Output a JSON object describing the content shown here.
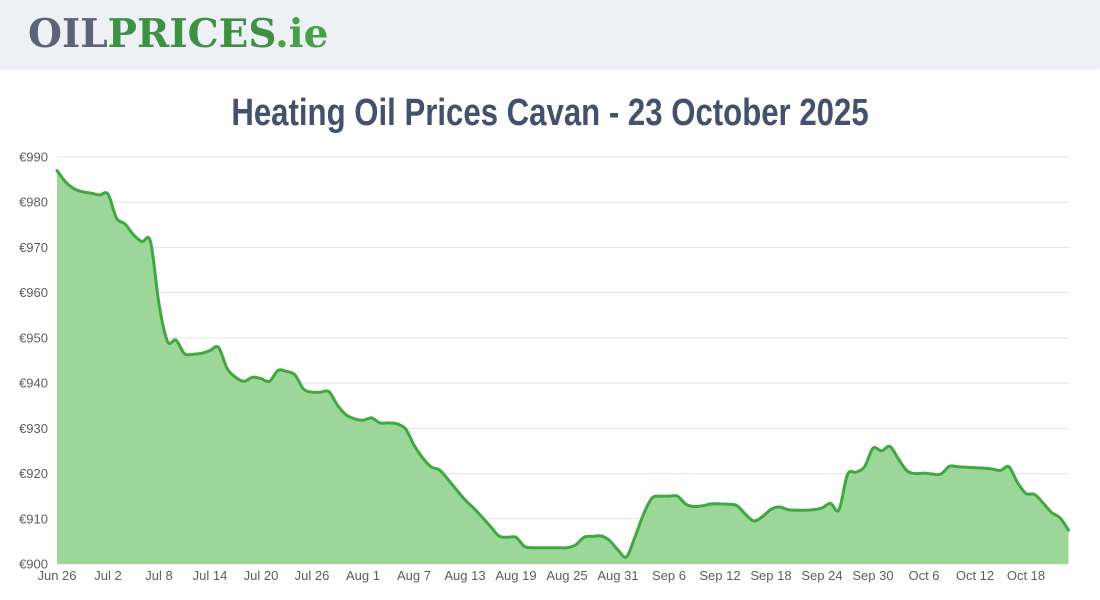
{
  "header": {
    "logo_part1": "OIL",
    "logo_part2": "PRICES",
    "logo_part3": ".ie"
  },
  "page_title": "Heating Oil Prices Cavan - 23 October 2025",
  "colors": {
    "header_bg": "#edf0f4",
    "logo_gray": "#5a6474",
    "logo_green": "#3e9142",
    "title_text": "#44516a",
    "line": "#3fa83e",
    "fill": "#9cd699",
    "grid": "#e3e3e3",
    "axis_text": "#5d5d5d"
  },
  "chart_data": {
    "type": "area",
    "title": "Heating Oil Prices Cavan - 23 October 2025",
    "xlabel": "",
    "ylabel": "",
    "currency": "€",
    "ylim": [
      900,
      990
    ],
    "y_ticks": [
      900,
      910,
      920,
      930,
      940,
      950,
      960,
      970,
      980,
      990
    ],
    "grid": "horizontal",
    "legend_position": "none",
    "x_tick_labels": [
      "Jun 26",
      "Jul 2",
      "Jul 8",
      "Jul 14",
      "Jul 20",
      "Jul 26",
      "Aug 1",
      "Aug 7",
      "Aug 13",
      "Aug 19",
      "Aug 25",
      "Aug 31",
      "Sep 6",
      "Sep 12",
      "Sep 18",
      "Sep 24",
      "Sep 30",
      "Oct 6",
      "Oct 12",
      "Oct 18"
    ],
    "x_tick_day_index": [
      0,
      6,
      12,
      18,
      24,
      30,
      36,
      42,
      48,
      54,
      60,
      66,
      72,
      78,
      84,
      90,
      96,
      102,
      108,
      114
    ],
    "dates": [
      "Jun 26",
      "Jun 27",
      "Jun 28",
      "Jun 29",
      "Jun 30",
      "Jul 1",
      "Jul 2",
      "Jul 3",
      "Jul 4",
      "Jul 5",
      "Jul 6",
      "Jul 7",
      "Jul 8",
      "Jul 9",
      "Jul 10",
      "Jul 11",
      "Jul 12",
      "Jul 13",
      "Jul 14",
      "Jul 15",
      "Jul 16",
      "Jul 17",
      "Jul 18",
      "Jul 19",
      "Jul 20",
      "Jul 21",
      "Jul 22",
      "Jul 23",
      "Jul 24",
      "Jul 25",
      "Jul 26",
      "Jul 27",
      "Jul 28",
      "Jul 29",
      "Jul 30",
      "Jul 31",
      "Aug 1",
      "Aug 2",
      "Aug 3",
      "Aug 4",
      "Aug 5",
      "Aug 6",
      "Aug 7",
      "Aug 8",
      "Aug 9",
      "Aug 10",
      "Aug 11",
      "Aug 12",
      "Aug 13",
      "Aug 14",
      "Aug 15",
      "Aug 16",
      "Aug 17",
      "Aug 18",
      "Aug 19",
      "Aug 20",
      "Aug 21",
      "Aug 22",
      "Aug 23",
      "Aug 24",
      "Aug 25",
      "Aug 26",
      "Aug 27",
      "Aug 28",
      "Aug 29",
      "Aug 30",
      "Aug 31",
      "Sep 1",
      "Sep 2",
      "Sep 3",
      "Sep 4",
      "Sep 5",
      "Sep 6",
      "Sep 7",
      "Sep 8",
      "Sep 9",
      "Sep 10",
      "Sep 11",
      "Sep 12",
      "Sep 13",
      "Sep 14",
      "Sep 15",
      "Sep 16",
      "Sep 17",
      "Sep 18",
      "Sep 19",
      "Sep 20",
      "Sep 21",
      "Sep 22",
      "Sep 23",
      "Sep 24",
      "Sep 25",
      "Sep 26",
      "Sep 27",
      "Sep 28",
      "Sep 29",
      "Sep 30",
      "Oct 1",
      "Oct 2",
      "Oct 3",
      "Oct 4",
      "Oct 5",
      "Oct 6",
      "Oct 7",
      "Oct 8",
      "Oct 9",
      "Oct 10",
      "Oct 11",
      "Oct 12",
      "Oct 13",
      "Oct 14",
      "Oct 15",
      "Oct 16",
      "Oct 17",
      "Oct 18",
      "Oct 19",
      "Oct 20",
      "Oct 21",
      "Oct 22",
      "Oct 23"
    ],
    "values": [
      987,
      984.5,
      983,
      982.3,
      982,
      981.6,
      981.8,
      976.5,
      975.2,
      972.8,
      971.3,
      971.3,
      957.5,
      949.2,
      949.5,
      946.5,
      946.4,
      946.6,
      947.2,
      947.9,
      943.3,
      941.3,
      940.4,
      941.3,
      941,
      940.4,
      942.8,
      942.6,
      941.8,
      938.7,
      938,
      938,
      938.1,
      935.1,
      933,
      932.1,
      931.8,
      932.3,
      931.2,
      931.2,
      931,
      929.9,
      926.3,
      923.5,
      921.5,
      920.8,
      918.7,
      916.4,
      914.2,
      912.4,
      910.4,
      908.3,
      906.2,
      905.9,
      905.9,
      903.9,
      903.6,
      903.6,
      903.6,
      903.6,
      903.6,
      904.2,
      905.9,
      906.1,
      906.2,
      905.2,
      903.1,
      901.6,
      906,
      911,
      914.6,
      915,
      915,
      915,
      913.2,
      912.7,
      912.9,
      913.3,
      913.3,
      913.2,
      912.9,
      911,
      909.5,
      910.5,
      912.1,
      912.6,
      912,
      911.9,
      911.9,
      912,
      912.4,
      913.4,
      912,
      919.8,
      920.3,
      921.5,
      925.6,
      925,
      926,
      923.2,
      920.6,
      920,
      920.1,
      919.9,
      919.9,
      921.6,
      921.5,
      921.4,
      921.3,
      921.2,
      921,
      920.7,
      921.5,
      918,
      915.6,
      915.4,
      913.5,
      911.4,
      910.2,
      907.5
    ]
  }
}
